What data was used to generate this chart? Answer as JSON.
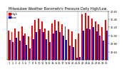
{
  "title": "Milwaukee Weather Barometric Pressure Daily High/Low",
  "highs": [
    30.12,
    30.08,
    30.18,
    30.1,
    30.22,
    30.05,
    29.98,
    30.25,
    30.38,
    30.42,
    30.35,
    30.18,
    30.12,
    30.3,
    30.38,
    30.35,
    30.28,
    30.22,
    30.15,
    30.1,
    29.92,
    30.05,
    30.52,
    30.55,
    30.48,
    30.42,
    30.35,
    30.28,
    30.2,
    30.38
  ],
  "lows": [
    29.9,
    29.85,
    29.95,
    29.88,
    30.0,
    29.78,
    29.68,
    29.92,
    30.08,
    30.15,
    30.08,
    29.92,
    29.85,
    30.05,
    30.12,
    30.08,
    30.0,
    29.9,
    29.75,
    29.72,
    29.45,
    29.48,
    30.12,
    30.18,
    30.15,
    30.2,
    30.1,
    30.0,
    29.88,
    30.12
  ],
  "high_color": "#ff0000",
  "low_color": "#0000cc",
  "ylim_min": 29.4,
  "ylim_max": 30.6,
  "ytick_vals": [
    29.6,
    29.8,
    30.0,
    30.2,
    30.4,
    30.6
  ],
  "ytick_labels": [
    "29.60",
    "29.80",
    "30.00",
    "30.20",
    "30.40",
    "30.60"
  ],
  "background_color": "#ffffff",
  "title_fontsize": 3.5,
  "legend_fontsize": 2.8,
  "tick_fontsize": 2.5,
  "dashed_vline_positions": [
    20.5,
    21.5
  ],
  "n_days": 30
}
